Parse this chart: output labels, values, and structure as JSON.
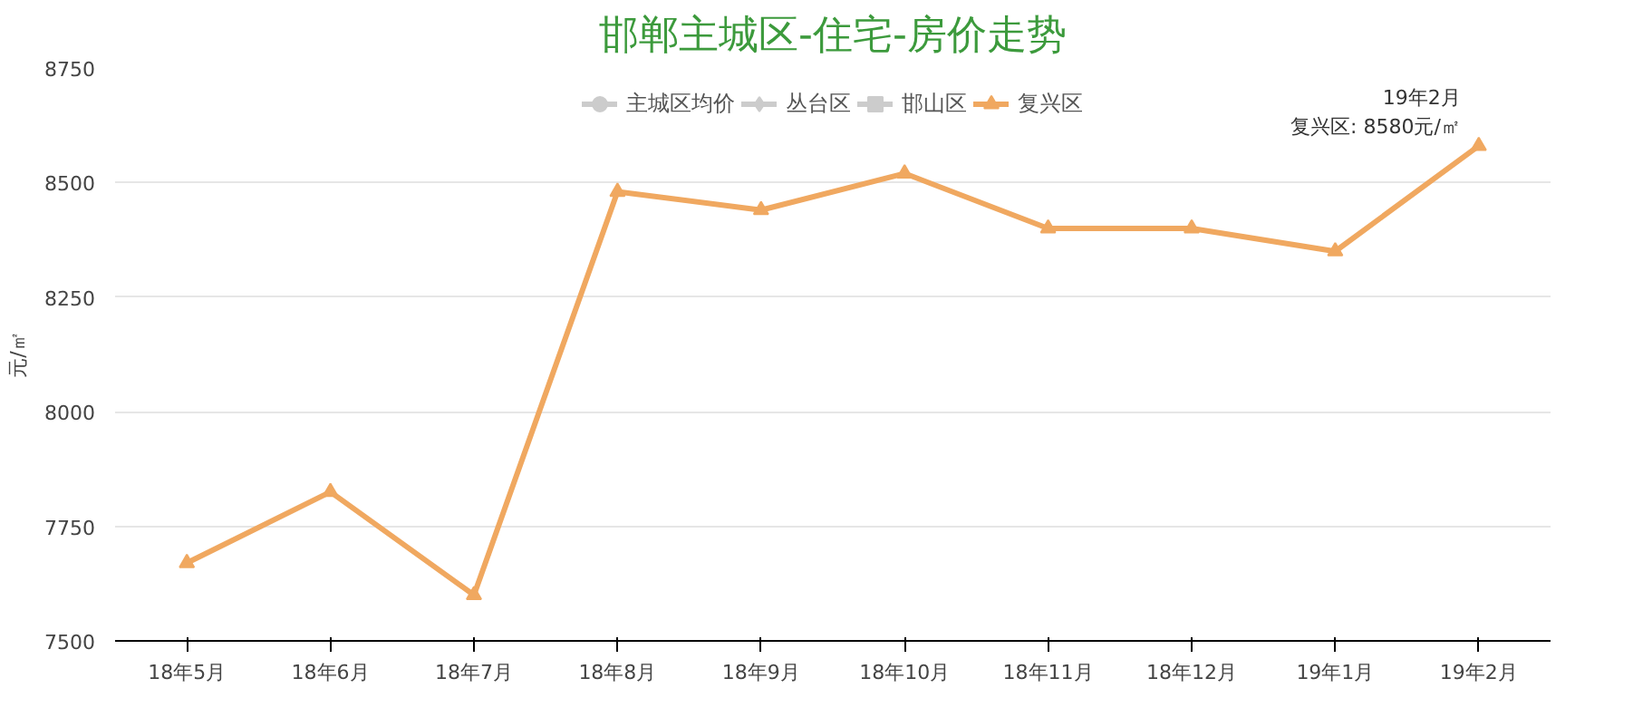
{
  "chart_data": {
    "type": "line",
    "title": "邯郸主城区-住宅-房价走势",
    "ylabel": "元/㎡",
    "categories": [
      "18年5月",
      "18年6月",
      "18年7月",
      "18年8月",
      "18年9月",
      "18年10月",
      "18年11月",
      "18年12月",
      "19年1月",
      "19年2月"
    ],
    "ylim": [
      7500,
      8750
    ],
    "yticks": [
      7500,
      7750,
      8000,
      8250,
      8500,
      8750
    ],
    "grid": "y",
    "legend": "top",
    "line_style": "solid",
    "series": [
      {
        "name": "主城区均价",
        "color": "#cccccc",
        "marker": "circle",
        "values": [
          null,
          null,
          null,
          null,
          null,
          null,
          null,
          null,
          null,
          null
        ]
      },
      {
        "name": "丛台区",
        "color": "#cccccc",
        "marker": "diamond",
        "values": [
          null,
          null,
          null,
          null,
          null,
          null,
          null,
          null,
          null,
          null
        ]
      },
      {
        "name": "邯山区",
        "color": "#cccccc",
        "marker": "square",
        "values": [
          null,
          null,
          null,
          null,
          null,
          null,
          null,
          null,
          null,
          null
        ]
      },
      {
        "name": "复兴区",
        "color": "#f0a860",
        "marker": "triangle",
        "values": [
          7670,
          7825,
          7600,
          8480,
          8440,
          8520,
          8400,
          8400,
          8350,
          8580
        ]
      }
    ],
    "annotations": [
      {
        "text": "19年2月",
        "x": "19年2月",
        "y": 8580
      },
      {
        "text": "复兴区: 8580元/㎡",
        "x": "19年2月",
        "y": 8580
      }
    ]
  }
}
